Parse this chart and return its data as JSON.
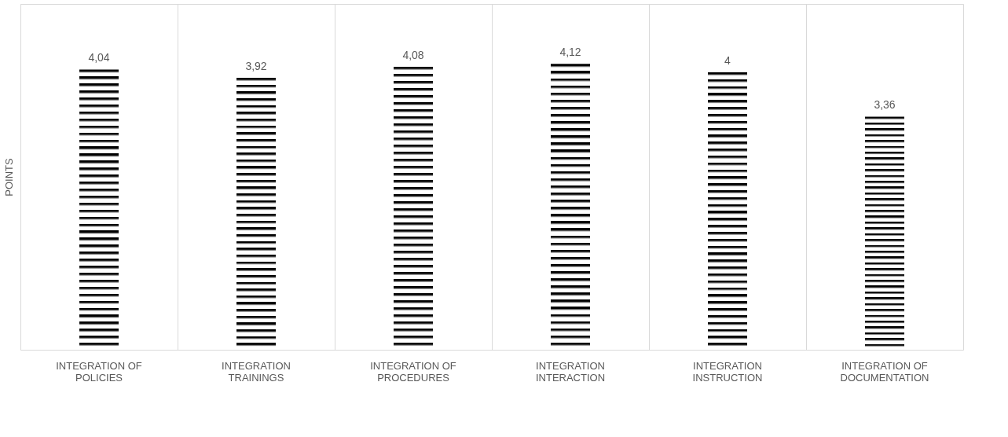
{
  "chart_data": {
    "type": "bar",
    "ylabel": "POINTS",
    "categories": [
      "INTEGRATION OF POLICIES",
      "INTEGRATION TRAININGS",
      "INTEGRATION OF PROCEDURES",
      "INTEGRATION INTERACTION",
      "INTEGRATION INSTRUCTION",
      "INTEGRATION OF DOCUMENTATION"
    ],
    "values": [
      4.04,
      3.92,
      4.08,
      4.12,
      4,
      3.36
    ],
    "value_labels": [
      "4,04",
      "3,92",
      "4,08",
      "4,12",
      "4",
      "3,36"
    ],
    "color": "#000000",
    "grid": "x"
  }
}
